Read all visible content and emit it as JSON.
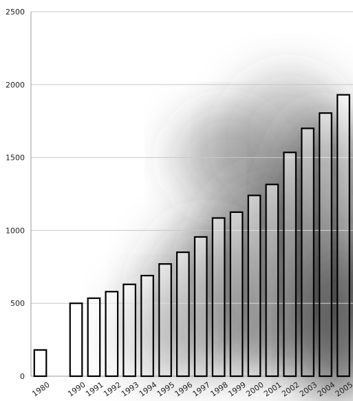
{
  "chart_data": {
    "type": "bar",
    "title": "",
    "xlabel": "",
    "ylabel": "",
    "categories": [
      "1980",
      "1990",
      "1991",
      "1992",
      "1993",
      "1994",
      "1995",
      "1996",
      "1997",
      "1998",
      "1999",
      "2000",
      "2001",
      "2002",
      "2003",
      "2004",
      "2005"
    ],
    "values": [
      180,
      500,
      535,
      580,
      630,
      690,
      770,
      850,
      955,
      1085,
      1125,
      1240,
      1315,
      1535,
      1700,
      1805,
      1930
    ],
    "yticks": [
      "0",
      "500",
      "1000",
      "1500",
      "2000",
      "2500"
    ],
    "ylim": [
      0,
      2500
    ],
    "grid": true,
    "legend": "none",
    "colors": {
      "bar_fill": "#ffffff",
      "bar_stroke": "#000000",
      "grid": "#c8c8c8",
      "axis": "#999999",
      "smoke": "#3a3a3a"
    }
  }
}
